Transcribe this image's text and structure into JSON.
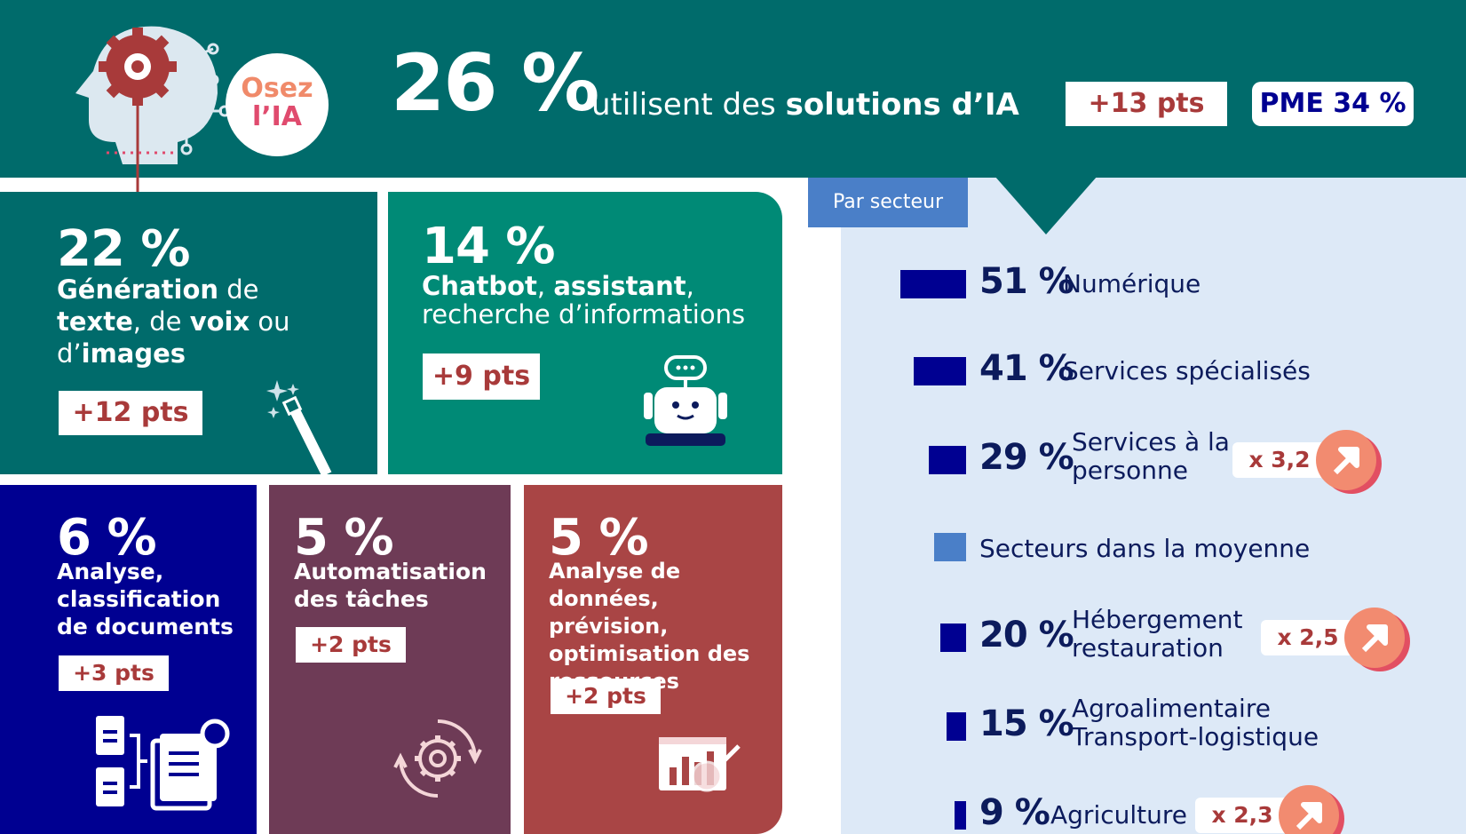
{
  "header": {
    "logo_line1": "Osez",
    "logo_line2": "l’IA",
    "headline_pct": "26 %",
    "headline_text_prefix": "utilisent des",
    "headline_text_bold": "solutions d’IA",
    "evolution": "+13 pts",
    "pme": "PME 34 %"
  },
  "tiles": [
    {
      "pct": "22 %",
      "b1": "Génération",
      "t1": " de",
      "b2": "texte",
      "t2": ", de ",
      "b3": "voix",
      "t3": " ou",
      "t4": "d’",
      "b4": "images",
      "pts": "+12 pts"
    },
    {
      "pct": "14 %",
      "b1": "Chatbot",
      "t1": ", ",
      "b2": "assistant",
      "t2": ",",
      "line2": "recherche d’informations",
      "pts": "+9 pts"
    },
    {
      "pct": "6 %",
      "l1": "Analyse,",
      "l2": "classification",
      "l3": "de documents",
      "pts": "+3 pts"
    },
    {
      "pct": "5 %",
      "l1": "Automatisation",
      "l2": "des tâches",
      "pts": "+2 pts"
    },
    {
      "pct": "5 %",
      "l1": "Analyse de",
      "l2": "données, prévision,",
      "l3": "optimisation des",
      "l4": "ressources",
      "pts": "+2 pts"
    }
  ],
  "colors": {
    "teal_dark": "#006b6b",
    "teal_mid": "#008a76",
    "navy": "#000091",
    "plum": "#6e3b56",
    "brick": "#a94545",
    "panel": "#dde9f7",
    "bar_navy": "#000091",
    "bar_light": "#4a7fc8",
    "accent_red": "#a83a3a"
  },
  "chart_data": {
    "type": "bar",
    "title": "Par secteur",
    "orientation": "horizontal",
    "categories": [
      "Numérique",
      "Services spécialisés",
      "Services à la personne",
      "Secteurs dans la moyenne",
      "Hébergement restauration",
      "Agroalimentaire Transport-logistique",
      "Agriculture"
    ],
    "values": [
      51,
      41,
      29,
      26,
      20,
      15,
      9
    ],
    "value_labels": [
      "51 %",
      "41 %",
      "29 %",
      "",
      "20 %",
      "15 %",
      "9 %"
    ],
    "multipliers": [
      "",
      "",
      "x 3,2",
      "",
      "x 2,5",
      "",
      "x 2,3"
    ],
    "ylim": [
      0,
      60
    ],
    "rows": [
      {
        "pct": "51 %",
        "label1": "Numérique",
        "label2": ""
      },
      {
        "pct": "41 %",
        "label1": "Services spécialisés",
        "label2": ""
      },
      {
        "pct": "29 %",
        "label1": "Services à la",
        "label2": "personne",
        "mult": "x 3,2"
      },
      {
        "pct": "",
        "label1": "Secteurs dans la  moyenne",
        "label2": ""
      },
      {
        "pct": "20 %",
        "label1": "Hébergement",
        "label2": "restauration",
        "mult": "x 2,5"
      },
      {
        "pct": "15 %",
        "label1": "Agroalimentaire",
        "label2": "Transport-logistique"
      },
      {
        "pct": "9 %",
        "label1": "Agriculture",
        "label2": "",
        "mult": "x 2,3"
      }
    ]
  }
}
